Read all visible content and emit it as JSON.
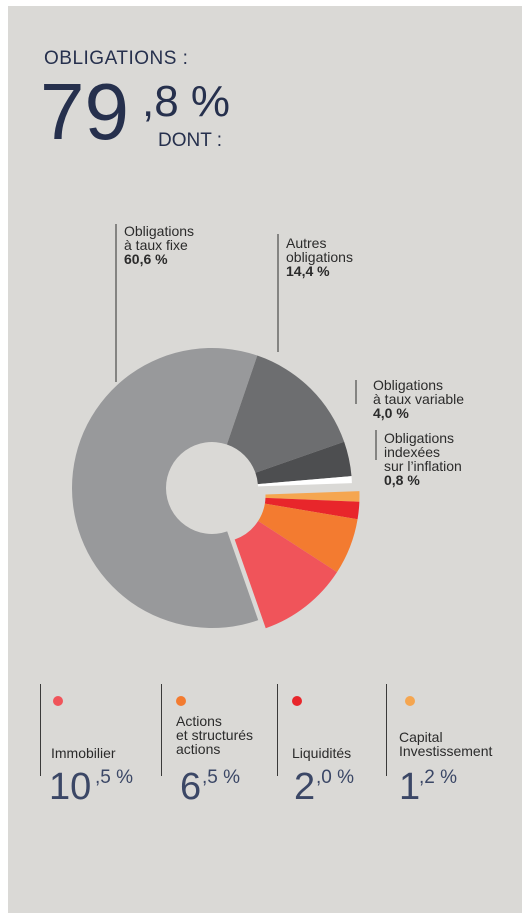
{
  "header": {
    "title": "OBLIGATIONS :",
    "value_int": "79",
    "value_dec": ",8 %",
    "subtitle": "DONT :"
  },
  "chart_data": {
    "type": "pie",
    "title": "OBLIGATIONS : 79,8 % DONT :",
    "slices": [
      {
        "line1": "Obligations",
        "line2": "à taux fixe",
        "line3": "",
        "pct_label": "60,6 %",
        "value": 60.6,
        "color": "#98999b",
        "group": "obligations"
      },
      {
        "line1": "Autres",
        "line2": "obligations",
        "line3": "",
        "pct_label": "14,4 %",
        "value": 14.4,
        "color": "#6d6e70",
        "group": "obligations"
      },
      {
        "line1": "Obligations",
        "line2": "à taux variable",
        "line3": "",
        "pct_label": "4,0 %",
        "value": 4.0,
        "color": "#4d4e50",
        "group": "obligations"
      },
      {
        "line1": "Obligations",
        "line2": "indexées",
        "line3": "sur l’inflation",
        "pct_label": "0,8 %",
        "value": 0.8,
        "color": "#ffffff",
        "group": "obligations"
      },
      {
        "line1": "Capital",
        "line2": "Investissement",
        "line3": "",
        "pct_label": "1,2 %",
        "value": 1.2,
        "color": "#f5a650",
        "group": "other"
      },
      {
        "line1": "Liquidités",
        "line2": "",
        "line3": "",
        "pct_label": "2,0 %",
        "value": 2.0,
        "color": "#e8262b",
        "group": "other"
      },
      {
        "line1": "Actions",
        "line2": "et structurés",
        "line3": "actions",
        "pct_label": "6,5 %",
        "value": 6.5,
        "color": "#f37b30",
        "group": "other"
      },
      {
        "line1": "Immobilier",
        "line2": "",
        "line3": "",
        "pct_label": "10,5 %",
        "value": 10.5,
        "color": "#f0545a",
        "group": "other"
      }
    ]
  },
  "legend": [
    {
      "name_lines": [
        "Immobilier"
      ],
      "int": "10",
      "dec": ",5 %",
      "color": "#f0545a"
    },
    {
      "name_lines": [
        "Actions",
        "et structurés",
        "actions"
      ],
      "int": "6",
      "dec": ",5 %",
      "color": "#f37b30"
    },
    {
      "name_lines": [
        "Liquidités"
      ],
      "int": "2",
      "dec": ",0 %",
      "color": "#e8262b"
    },
    {
      "name_lines": [
        "Capital",
        "Investissement"
      ],
      "int": "1",
      "dec": ",2 %",
      "color": "#f5a650"
    }
  ]
}
